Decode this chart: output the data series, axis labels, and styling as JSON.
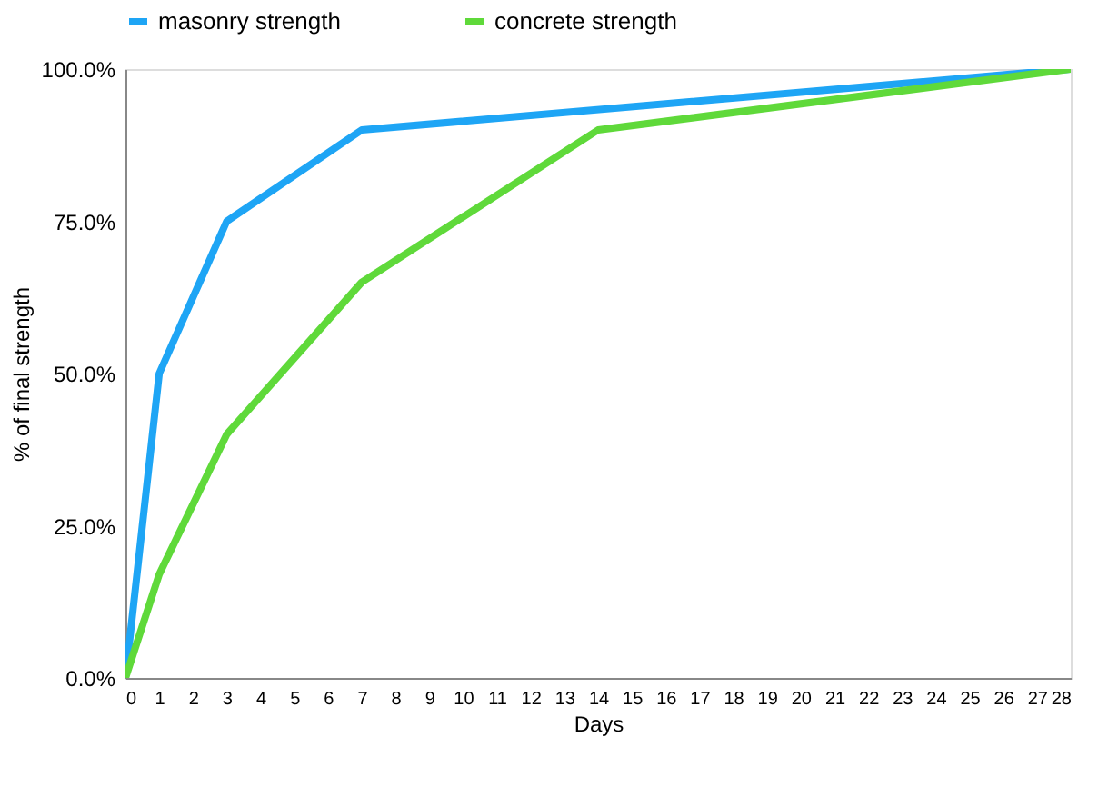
{
  "chart_data": {
    "type": "line",
    "xlabel": "Days",
    "ylabel": "% of final strength",
    "xlim": [
      0,
      28
    ],
    "xticks": [
      0,
      1,
      2,
      3,
      4,
      5,
      6,
      7,
      8,
      9,
      10,
      11,
      12,
      13,
      14,
      15,
      16,
      17,
      18,
      19,
      20,
      21,
      22,
      23,
      24,
      25,
      26,
      27,
      28
    ],
    "ylim": [
      0,
      100
    ],
    "yticks": [
      {
        "value": 0,
        "label": "0.0%"
      },
      {
        "value": 25,
        "label": "25.0%"
      },
      {
        "value": 50,
        "label": "50.0%"
      },
      {
        "value": 75,
        "label": "75.0%"
      },
      {
        "value": 100,
        "label": "100.0%"
      }
    ],
    "grid": false,
    "legend": "top",
    "marker": "none",
    "line_style": "solid",
    "series": [
      {
        "name": "masonry strength",
        "color": "#1ea5f5",
        "x": [
          0,
          1,
          3,
          7,
          28
        ],
        "values": [
          0,
          50,
          75,
          90,
          100
        ]
      },
      {
        "name": "concrete strength",
        "color": "#5fd93a",
        "x": [
          0,
          1,
          3,
          7,
          14,
          28
        ],
        "values": [
          0,
          17,
          40,
          65,
          90,
          100
        ]
      }
    ]
  }
}
